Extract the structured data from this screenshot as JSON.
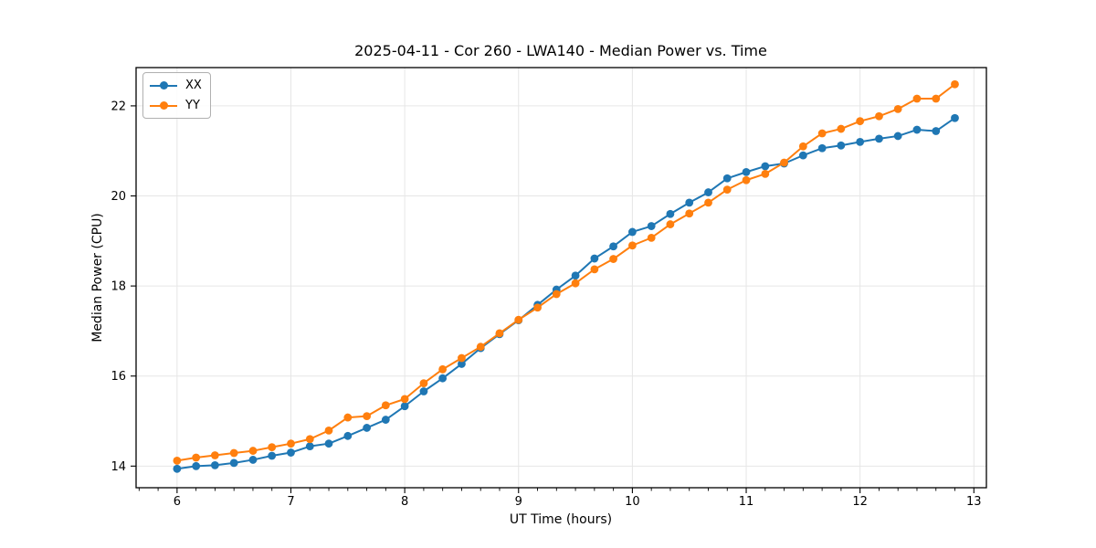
{
  "figure": {
    "background": "#ffffff"
  },
  "chart_data": {
    "type": "line",
    "title": "2025-04-11 - Cor 260 - LWA140 - Median Power vs. Time",
    "xlabel": "UT Time (hours)",
    "ylabel": "Median Power (CPU)",
    "xlim": [
      5.64,
      13.11
    ],
    "ylim": [
      13.52,
      22.85
    ],
    "xticks": [
      6,
      7,
      8,
      9,
      10,
      11,
      12,
      13
    ],
    "yticks": [
      14,
      16,
      18,
      20,
      22
    ],
    "x_minor_tick_step": 0.1667,
    "grid": true,
    "grid_color": "#e6e6e6",
    "axis_color": "#000000",
    "legend": {
      "position": "upper-left",
      "entries": [
        "XX",
        "YY"
      ]
    },
    "x": [
      6.0,
      6.167,
      6.333,
      6.5,
      6.667,
      6.833,
      7.0,
      7.167,
      7.333,
      7.5,
      7.667,
      7.833,
      8.0,
      8.167,
      8.333,
      8.5,
      8.667,
      8.833,
      9.0,
      9.167,
      9.333,
      9.5,
      9.667,
      9.833,
      10.0,
      10.167,
      10.333,
      10.5,
      10.667,
      10.833,
      11.0,
      11.167,
      11.333,
      11.5,
      11.667,
      11.833,
      12.0,
      12.167,
      12.333,
      12.5,
      12.667,
      12.833
    ],
    "series": [
      {
        "name": "XX",
        "color": "#1f77b4",
        "values": [
          13.94,
          14.0,
          14.02,
          14.07,
          14.14,
          14.23,
          14.3,
          14.44,
          14.5,
          14.67,
          14.85,
          15.03,
          15.33,
          15.66,
          15.95,
          16.27,
          16.62,
          16.93,
          17.24,
          17.58,
          17.92,
          18.23,
          18.61,
          18.88,
          19.2,
          19.33,
          19.6,
          19.85,
          20.08,
          20.39,
          20.53,
          20.66,
          20.72,
          20.9,
          21.06,
          21.12,
          21.2,
          21.27,
          21.33,
          21.47,
          21.44,
          21.73
        ]
      },
      {
        "name": "YY",
        "color": "#ff7f0e",
        "values": [
          14.12,
          14.19,
          14.24,
          14.29,
          14.34,
          14.42,
          14.5,
          14.6,
          14.79,
          15.08,
          15.11,
          15.35,
          15.49,
          15.84,
          16.15,
          16.4,
          16.65,
          16.95,
          17.25,
          17.52,
          17.82,
          18.06,
          18.37,
          18.6,
          18.9,
          19.07,
          19.37,
          19.61,
          19.85,
          20.14,
          20.35,
          20.49,
          20.74,
          21.1,
          21.39,
          21.49,
          21.66,
          21.77,
          21.93,
          22.16,
          22.16,
          22.48
        ]
      }
    ]
  }
}
